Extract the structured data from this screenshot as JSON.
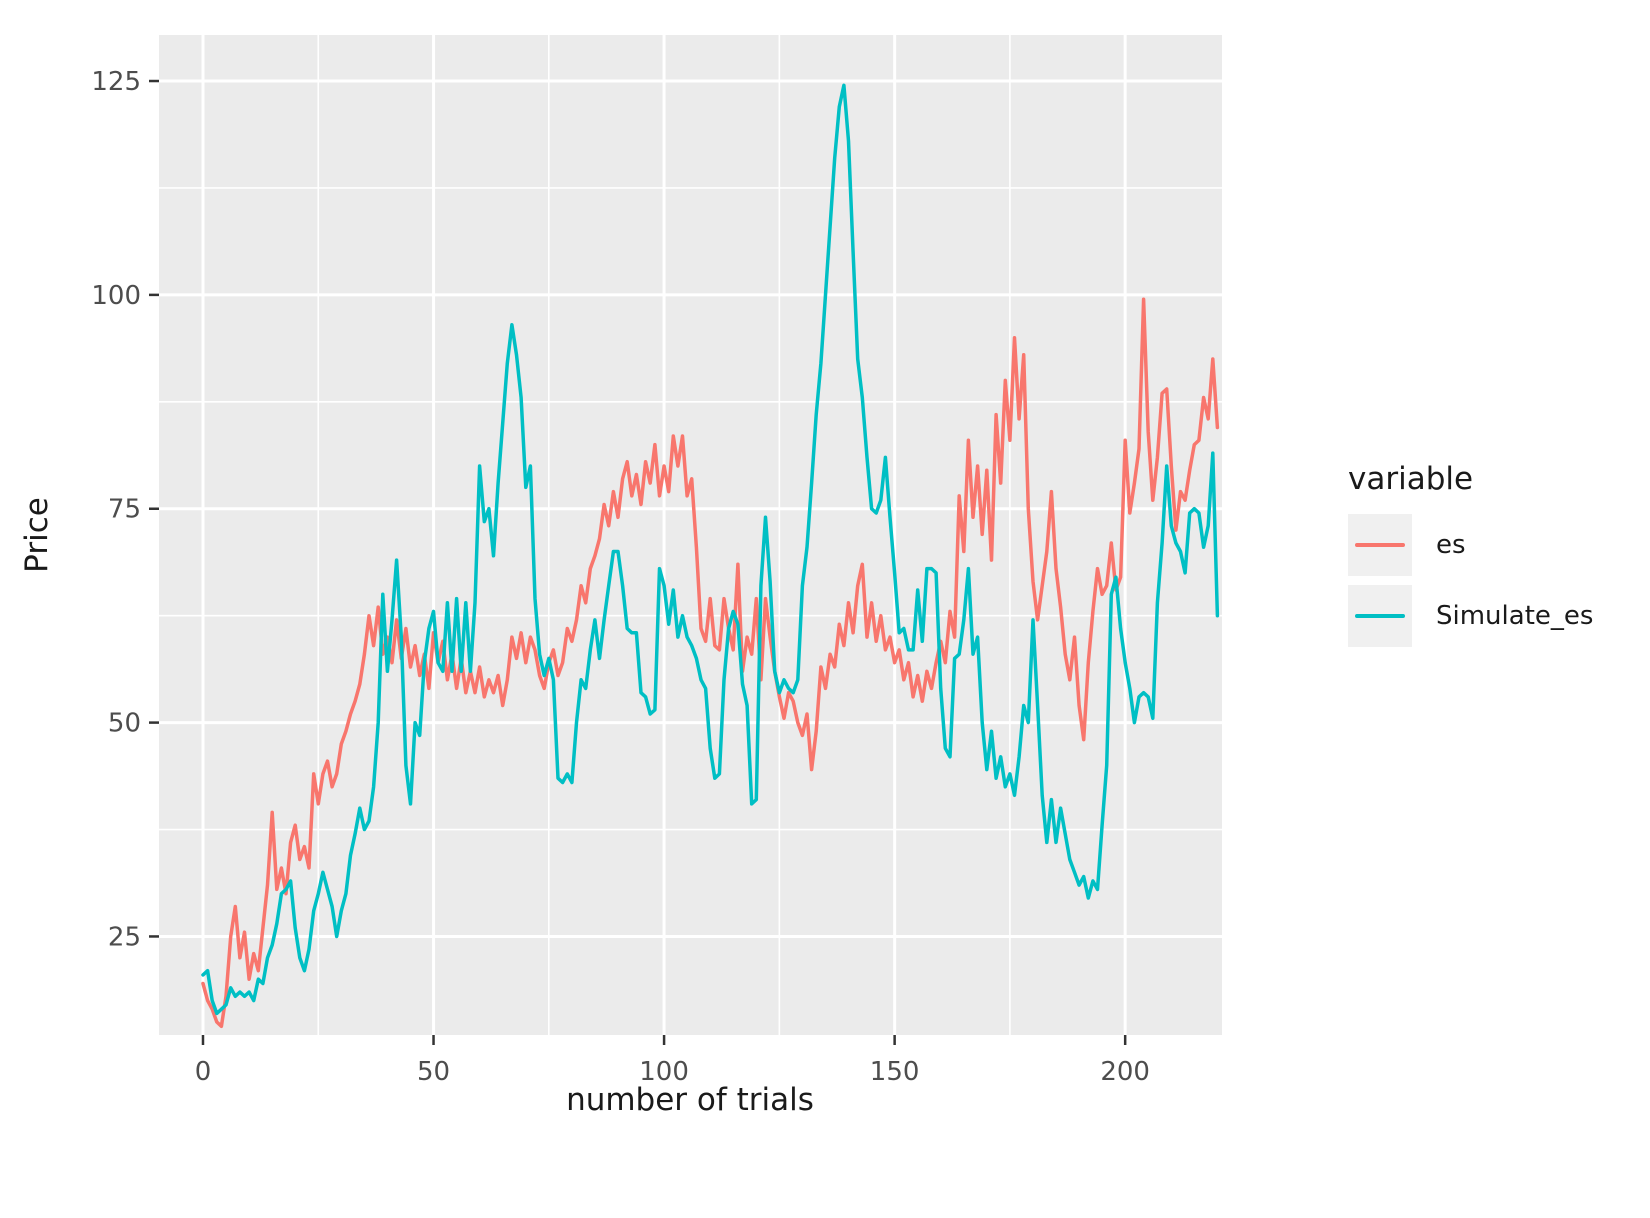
{
  "page": {
    "background": "#FFFFFF"
  },
  "chart_data": {
    "type": "line",
    "title": "",
    "xlabel": "number of trials",
    "ylabel": "Price",
    "legend_title": "variable",
    "legend_position": "right",
    "grid": true,
    "panel_bg": "#EBEBEB",
    "grid_color": "#FFFFFF",
    "tick_color": "#333333",
    "tick_label_color": "#4D4D4D",
    "axis_title_color": "#1A1A1A",
    "x_ticks": [
      0,
      50,
      100,
      150,
      200
    ],
    "y_ticks": [
      25,
      50,
      75,
      100,
      125
    ],
    "x_minor": [
      25,
      75,
      125,
      175
    ],
    "y_minor": [
      12.5,
      37.5,
      62.5,
      87.5,
      112.5
    ],
    "xlim": [
      -9.54,
      221
    ],
    "ylim": [
      13.48,
      130.38
    ],
    "x_start": 0,
    "x_step": 1,
    "series": [
      {
        "name": "es",
        "color": "#F8766D",
        "values": [
          19.5,
          17.5,
          16.5,
          15,
          14.5,
          18,
          25,
          28.5,
          22.5,
          25.5,
          20,
          23,
          21,
          26,
          31,
          39.5,
          30.5,
          33,
          30,
          36,
          38,
          34,
          35.5,
          33,
          44,
          40.5,
          44,
          45.5,
          42.5,
          44,
          47.5,
          49,
          51,
          52.5,
          54.5,
          58,
          62.5,
          59,
          63.5,
          58,
          60,
          57,
          62,
          57.5,
          61,
          56.5,
          59,
          55.5,
          58,
          54,
          60.5,
          57,
          59.5,
          55,
          58,
          54,
          57.5,
          53.5,
          56,
          53.5,
          56.5,
          53,
          55,
          53.5,
          55.5,
          52,
          55,
          60,
          57.5,
          60.5,
          57,
          60,
          58.5,
          55.5,
          54,
          57,
          58.5,
          55.5,
          57,
          61,
          59.5,
          62,
          66,
          64,
          68,
          69.5,
          71.5,
          75.5,
          73,
          77,
          74,
          78.5,
          80.5,
          76.5,
          79,
          75.5,
          80.5,
          78,
          82.5,
          76.5,
          80,
          77,
          83.5,
          80,
          83.5,
          76.5,
          78.5,
          70.5,
          61,
          59.5,
          64.5,
          59,
          58.5,
          64.5,
          61,
          58.5,
          68.5,
          56,
          60,
          58,
          64.5,
          55,
          64.5,
          60,
          56,
          53,
          50.5,
          53.5,
          52.5,
          50,
          48.5,
          51,
          44.5,
          49,
          56.5,
          54,
          58,
          56.5,
          61.5,
          59,
          64,
          60.5,
          66,
          68.5,
          60,
          64,
          59.5,
          62.5,
          58.5,
          60,
          57,
          58.5,
          55,
          57,
          53,
          55.5,
          52.5,
          56,
          54,
          57,
          59.5,
          57,
          63,
          60,
          76.5,
          70,
          83,
          74,
          80,
          72,
          79.5,
          69,
          86,
          78,
          90,
          83,
          95,
          85.5,
          93,
          75,
          66.5,
          62,
          66,
          70,
          77,
          68,
          63.5,
          58,
          55,
          60,
          52,
          48,
          57,
          63,
          68,
          65,
          66,
          71,
          65.5,
          67,
          83,
          74.5,
          78,
          82,
          99.5,
          84,
          76,
          81,
          88.5,
          89,
          80,
          72.5,
          77,
          76,
          79.5,
          82.5,
          83,
          88,
          85.5,
          92.5,
          84.5
        ]
      },
      {
        "name": "Simulate_es",
        "color": "#00BFC4",
        "values": [
          20.5,
          21,
          17.5,
          16,
          16.5,
          17,
          19,
          18,
          18.5,
          18,
          18.5,
          17.5,
          20,
          19.5,
          22.5,
          24,
          26.5,
          30,
          30.5,
          31.5,
          26,
          22.5,
          21,
          23.5,
          28,
          30,
          32.5,
          30.5,
          28.5,
          25,
          28,
          30,
          34.5,
          37,
          40,
          37.5,
          38.5,
          42.5,
          50,
          65,
          56,
          62,
          69,
          60,
          45,
          40.5,
          50,
          48.5,
          57,
          61,
          63,
          57,
          56,
          64,
          56,
          64.5,
          56,
          64,
          56,
          64,
          80,
          73.5,
          75,
          69.5,
          78,
          85,
          92,
          96.5,
          93,
          88,
          77.5,
          80,
          64.5,
          58,
          55.5,
          57.5,
          55,
          43.5,
          43,
          44,
          43,
          50,
          55,
          54,
          58.5,
          62,
          57.5,
          62,
          66,
          70,
          70,
          66,
          61,
          60.5,
          60.5,
          53.5,
          53,
          51,
          51.5,
          68,
          66,
          61.5,
          65.5,
          60,
          62.5,
          60,
          59,
          57.5,
          55,
          54,
          47,
          43.5,
          44,
          55,
          61,
          63,
          61.5,
          54.5,
          52,
          40.5,
          41,
          66,
          74,
          66.5,
          56,
          53.5,
          55,
          54,
          53.5,
          55,
          66,
          70.5,
          78,
          86,
          92,
          100,
          108,
          116,
          122,
          124.5,
          118,
          105,
          92.5,
          88,
          81,
          75,
          74.5,
          76,
          81,
          74,
          67.5,
          60.5,
          61,
          58.5,
          58.5,
          65.5,
          59.5,
          68,
          68,
          67.5,
          54,
          47,
          46,
          57.5,
          58,
          62,
          68,
          58,
          60,
          50,
          44.5,
          49,
          43.5,
          46,
          42.5,
          44,
          41.5,
          46,
          52,
          50,
          62,
          52,
          41.5,
          36,
          41,
          36,
          40,
          37,
          34,
          32.5,
          31,
          32,
          29.5,
          31.5,
          30.5,
          38,
          45,
          65,
          67,
          61,
          57,
          54,
          50,
          53,
          53.5,
          53,
          50.5,
          64,
          71,
          80,
          73,
          71,
          70,
          67.5,
          74.5,
          75,
          74.5,
          70.5,
          73,
          81.5,
          62.5
        ]
      }
    ]
  },
  "legend": {
    "title": "variable",
    "items": [
      {
        "label": "es",
        "color": "#F8766D"
      },
      {
        "label": "Simulate_es",
        "color": "#00BFC4"
      }
    ]
  }
}
